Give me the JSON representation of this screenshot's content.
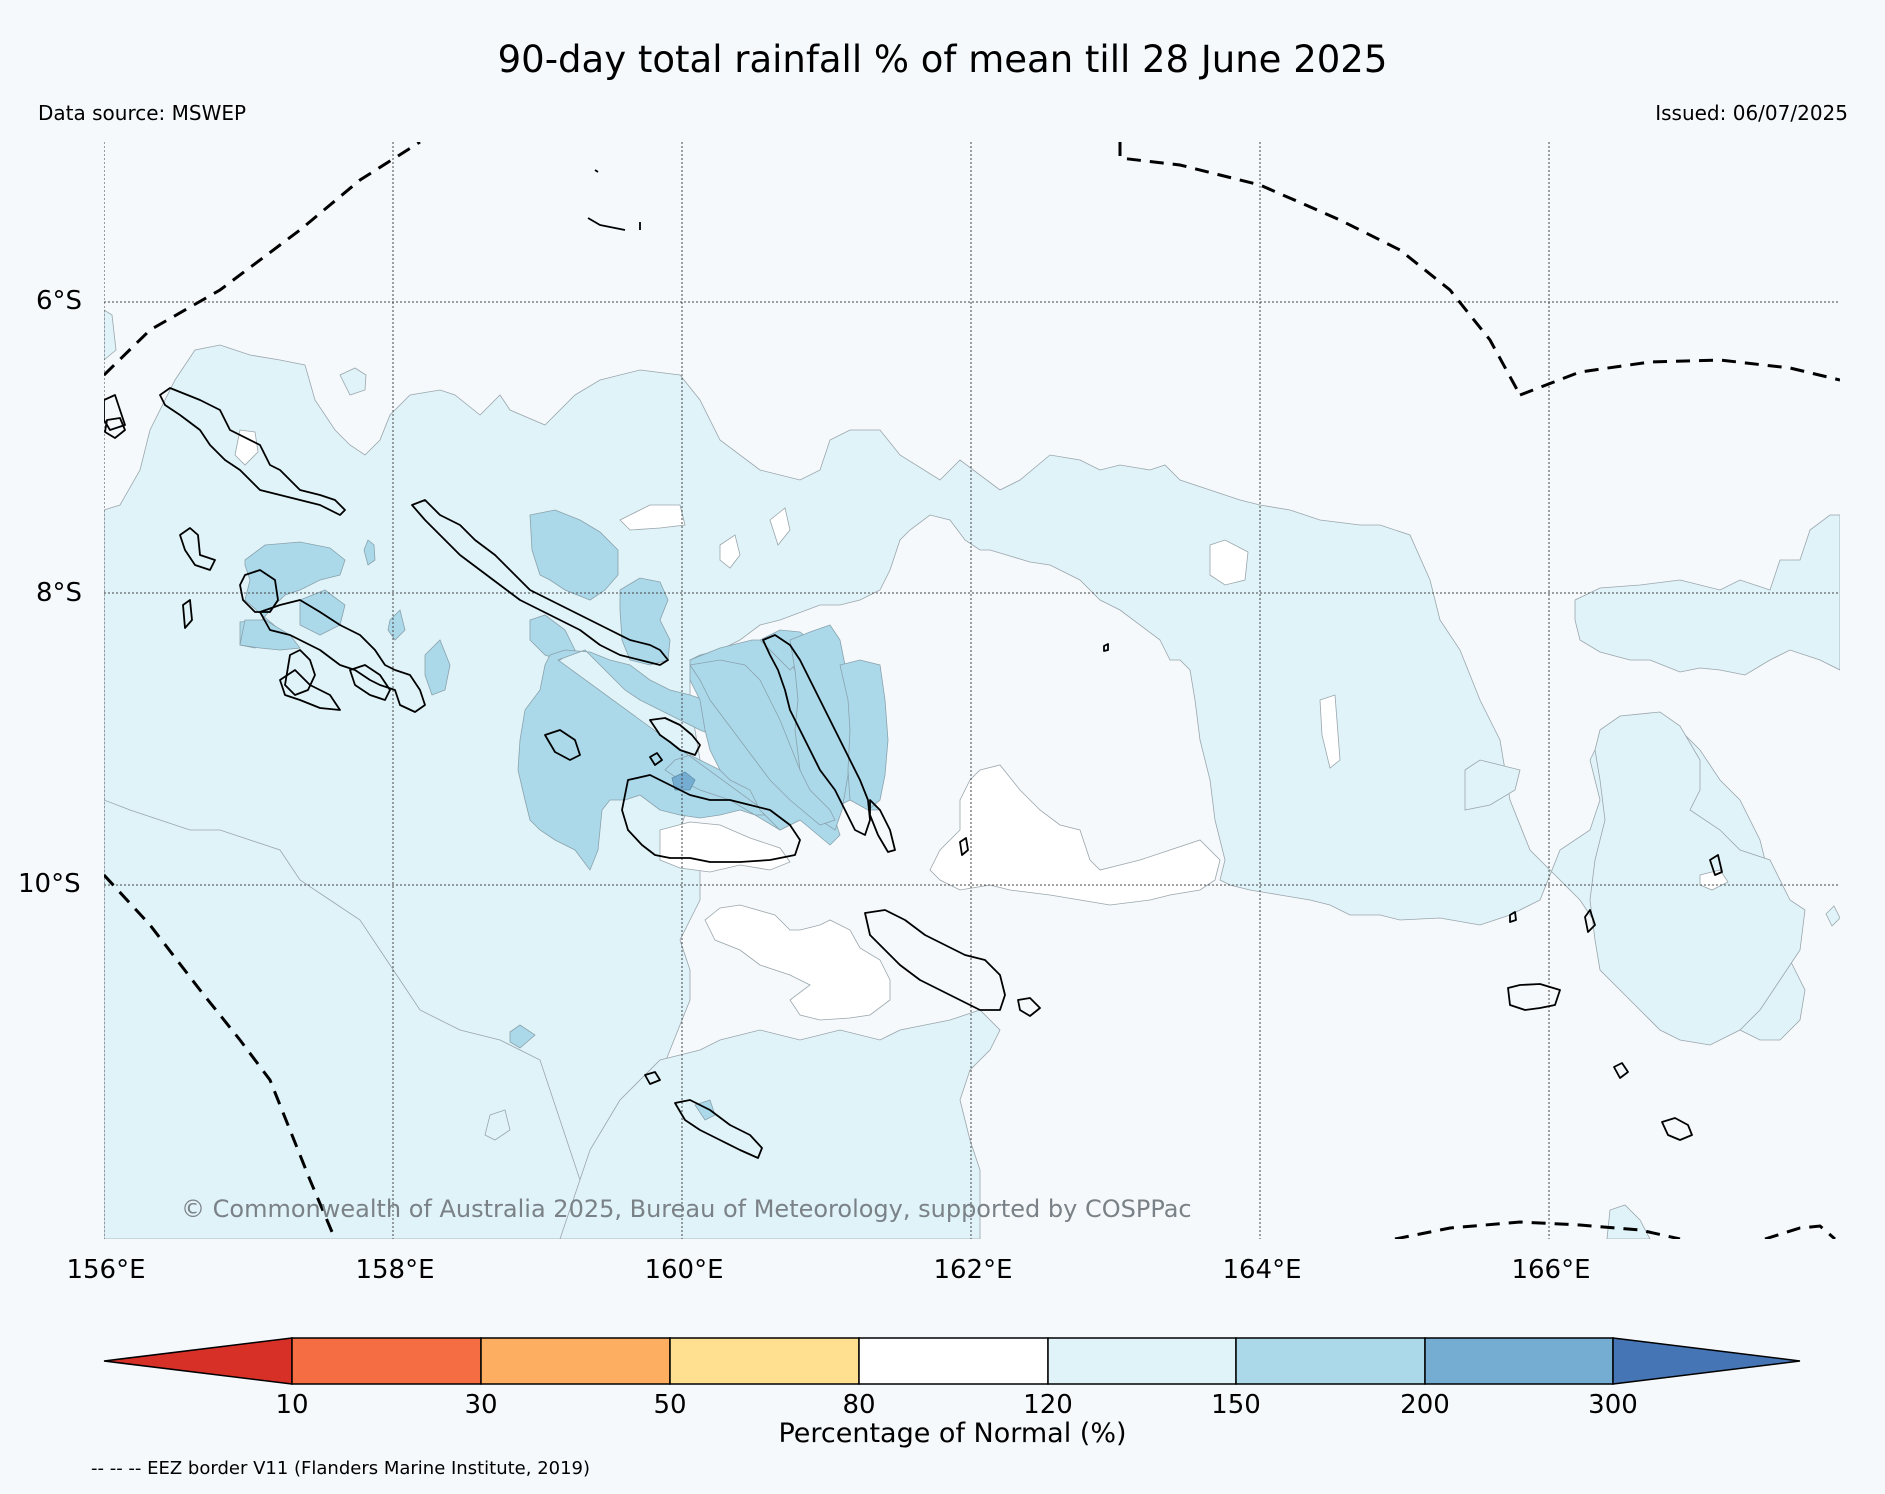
{
  "title": "90-day total rainfall % of mean till 28 June 2025",
  "data_source": "Data source: MSWEP",
  "issued": "Issued: 06/07/2025",
  "copyright": "© Commonwealth of Australia 2025, Bureau of Meteorology, supported by COSPPac",
  "eez_note": "-- -- -- EEZ border V11 (Flanders Marine Institute, 2019)",
  "map": {
    "lon_range": [
      156,
      168
    ],
    "lat_range": [
      -4.9,
      -12.4
    ],
    "lon_ticks": [
      "156°E",
      "158°E",
      "160°E",
      "162°E",
      "164°E",
      "166°E"
    ],
    "lat_ticks": [
      "6°S",
      "8°S",
      "10°S"
    ]
  },
  "colorbar": {
    "title": "Percentage of Normal (%)",
    "labels": [
      "10",
      "30",
      "50",
      "80",
      "120",
      "150",
      "200",
      "300"
    ],
    "colors": {
      "below_10": "#d73027",
      "10_30": "#f46d43",
      "30_50": "#fdae61",
      "50_80": "#fee090",
      "80_120": "#ffffff",
      "120_150": "#e0f3f8",
      "150_200": "#abd9e9",
      "200_300": "#74add1",
      "above_300": "#4575b4"
    }
  }
}
